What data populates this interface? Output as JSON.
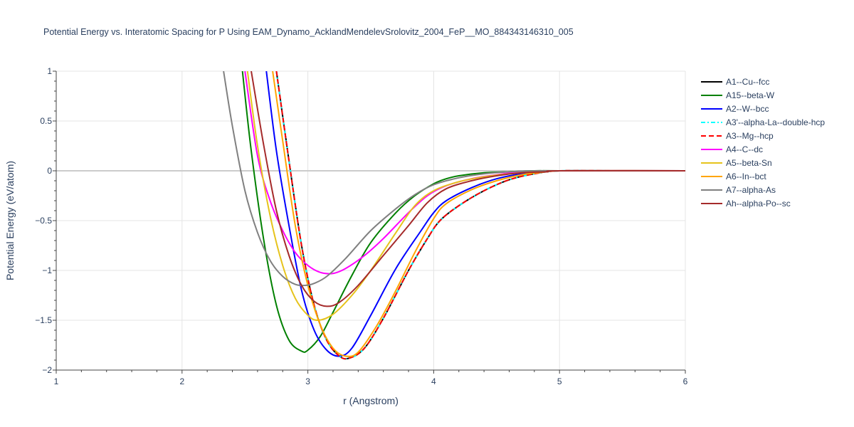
{
  "chart_data": {
    "type": "line",
    "title": "Potential Energy vs. Interatomic Spacing for P Using EAM_Dynamo_AcklandMendelevSrolovitz_2004_FeP__MO_884343146310_005",
    "xlabel": "r (Angstrom)",
    "ylabel": "Potential Energy (eV/atom)",
    "xlim": [
      1,
      6
    ],
    "ylim": [
      -2,
      1
    ],
    "x_ticks": [
      "1",
      "2",
      "3",
      "4",
      "5",
      "6"
    ],
    "y_ticks": [
      "1",
      "0.5",
      "0",
      "−0.5",
      "−1",
      "−1.5",
      "−2"
    ],
    "grid": true,
    "legend_position": "right",
    "series": [
      {
        "name": "A1--Cu--fcc",
        "color": "#000000",
        "dash": "solid",
        "x": [
          2.75,
          2.85,
          2.95,
          3.05,
          3.15,
          3.25,
          3.33,
          3.45,
          3.6,
          3.8,
          3.95,
          4.05,
          4.2,
          4.4,
          4.6,
          4.8,
          5.0,
          5.5,
          6.0
        ],
        "y": [
          1.0,
          0.1,
          -0.75,
          -1.35,
          -1.7,
          -1.86,
          -1.88,
          -1.78,
          -1.48,
          -1.0,
          -0.68,
          -0.5,
          -0.35,
          -0.2,
          -0.09,
          -0.03,
          0.0,
          0.0,
          0.0
        ]
      },
      {
        "name": "A15--beta-W",
        "color": "#008000",
        "dash": "solid",
        "x": [
          2.48,
          2.55,
          2.65,
          2.75,
          2.85,
          2.95,
          3.0,
          3.1,
          3.2,
          3.35,
          3.5,
          3.7,
          3.85,
          4.0,
          4.1,
          4.2,
          4.4,
          4.6,
          4.8,
          5.0,
          6.0
        ],
        "y": [
          1.0,
          0.2,
          -0.7,
          -1.35,
          -1.7,
          -1.81,
          -1.8,
          -1.66,
          -1.42,
          -1.05,
          -0.72,
          -0.42,
          -0.25,
          -0.13,
          -0.08,
          -0.05,
          -0.02,
          -0.01,
          0.0,
          0.0,
          0.0
        ]
      },
      {
        "name": "A2--W--bcc",
        "color": "#0000ff",
        "dash": "solid",
        "x": [
          2.67,
          2.75,
          2.85,
          2.95,
          3.05,
          3.15,
          3.25,
          3.35,
          3.5,
          3.7,
          3.9,
          4.0,
          4.1,
          4.3,
          4.5,
          4.7,
          4.9,
          5.0,
          6.0
        ],
        "y": [
          1.0,
          0.2,
          -0.55,
          -1.2,
          -1.6,
          -1.8,
          -1.86,
          -1.78,
          -1.45,
          -0.98,
          -0.6,
          -0.42,
          -0.3,
          -0.17,
          -0.08,
          -0.03,
          -0.01,
          0.0,
          0.0
        ]
      },
      {
        "name": "A3'--alpha-La--double-hcp",
        "color": "#00ffff",
        "dash": "6,3,2,3",
        "x": [
          2.75,
          2.85,
          2.95,
          3.05,
          3.15,
          3.25,
          3.33,
          3.45,
          3.6,
          3.8,
          3.95,
          4.05,
          4.2,
          4.4,
          4.6,
          4.8,
          5.0,
          5.5,
          6.0
        ],
        "y": [
          1.0,
          0.1,
          -0.75,
          -1.35,
          -1.7,
          -1.86,
          -1.88,
          -1.78,
          -1.48,
          -1.0,
          -0.68,
          -0.5,
          -0.35,
          -0.2,
          -0.09,
          -0.03,
          0.0,
          0.0,
          0.0
        ]
      },
      {
        "name": "A3--Mg--hcp",
        "color": "#ff0000",
        "dash": "7,4",
        "x": [
          2.75,
          2.85,
          2.95,
          3.05,
          3.15,
          3.25,
          3.33,
          3.45,
          3.6,
          3.8,
          3.95,
          4.05,
          4.2,
          4.4,
          4.6,
          4.8,
          5.0,
          5.5,
          6.0
        ],
        "y": [
          1.0,
          0.1,
          -0.75,
          -1.35,
          -1.7,
          -1.86,
          -1.88,
          -1.78,
          -1.48,
          -1.0,
          -0.68,
          -0.5,
          -0.35,
          -0.2,
          -0.09,
          -0.03,
          0.0,
          0.0,
          0.0
        ]
      },
      {
        "name": "A4--C--dc",
        "color": "#ff00ff",
        "dash": "solid",
        "x": [
          2.5,
          2.6,
          2.7,
          2.8,
          2.9,
          3.0,
          3.1,
          3.2,
          3.3,
          3.45,
          3.6,
          3.8,
          3.95,
          4.1,
          4.3,
          4.5,
          4.7,
          5.0,
          6.0
        ],
        "y": [
          1.0,
          0.15,
          -0.3,
          -0.6,
          -0.82,
          -0.95,
          -1.02,
          -1.03,
          -0.98,
          -0.85,
          -0.68,
          -0.42,
          -0.25,
          -0.15,
          -0.08,
          -0.04,
          -0.01,
          0.0,
          0.0
        ]
      },
      {
        "name": "A5--beta-Sn",
        "color": "#e6c31c",
        "dash": "solid",
        "x": [
          2.52,
          2.6,
          2.7,
          2.8,
          2.9,
          3.0,
          3.08,
          3.2,
          3.35,
          3.5,
          3.7,
          3.85,
          4.0,
          4.2,
          4.4,
          4.6,
          4.8,
          5.0,
          6.0
        ],
        "y": [
          1.0,
          0.25,
          -0.45,
          -0.95,
          -1.28,
          -1.45,
          -1.5,
          -1.44,
          -1.25,
          -1.0,
          -0.62,
          -0.35,
          -0.2,
          -0.11,
          -0.06,
          -0.03,
          -0.01,
          0.0,
          0.0
        ]
      },
      {
        "name": "A6--In--bct",
        "color": "#ffa500",
        "dash": "solid",
        "x": [
          2.72,
          2.8,
          2.9,
          3.0,
          3.1,
          3.2,
          3.3,
          3.4,
          3.55,
          3.7,
          3.85,
          4.0,
          4.1,
          4.3,
          4.5,
          4.7,
          4.9,
          5.0,
          6.0
        ],
        "y": [
          1.0,
          0.3,
          -0.55,
          -1.15,
          -1.55,
          -1.78,
          -1.86,
          -1.82,
          -1.55,
          -1.2,
          -0.82,
          -0.48,
          -0.33,
          -0.19,
          -0.1,
          -0.04,
          -0.01,
          0.0,
          0.0
        ]
      },
      {
        "name": "A7--alpha-As",
        "color": "#808080",
        "dash": "solid",
        "x": [
          2.33,
          2.4,
          2.5,
          2.6,
          2.7,
          2.8,
          2.9,
          2.98,
          3.05,
          3.15,
          3.3,
          3.5,
          3.7,
          3.85,
          4.0,
          4.2,
          4.4,
          4.6,
          4.8,
          5.0,
          6.0
        ],
        "y": [
          1.0,
          0.45,
          -0.2,
          -0.62,
          -0.9,
          -1.06,
          -1.14,
          -1.15,
          -1.13,
          -1.06,
          -0.88,
          -0.6,
          -0.38,
          -0.24,
          -0.14,
          -0.07,
          -0.03,
          -0.01,
          0.0,
          0.0,
          0.0
        ]
      },
      {
        "name": "Ah--alpha-Po--sc",
        "color": "#a52a2a",
        "dash": "solid",
        "x": [
          2.55,
          2.65,
          2.75,
          2.85,
          2.95,
          3.05,
          3.15,
          3.25,
          3.4,
          3.6,
          3.8,
          3.95,
          4.1,
          4.3,
          4.5,
          4.7,
          4.9,
          5.0,
          6.0
        ],
        "y": [
          1.0,
          0.25,
          -0.4,
          -0.85,
          -1.15,
          -1.31,
          -1.36,
          -1.32,
          -1.15,
          -0.85,
          -0.55,
          -0.32,
          -0.18,
          -0.1,
          -0.05,
          -0.02,
          -0.01,
          0.0,
          0.0
        ]
      }
    ]
  }
}
